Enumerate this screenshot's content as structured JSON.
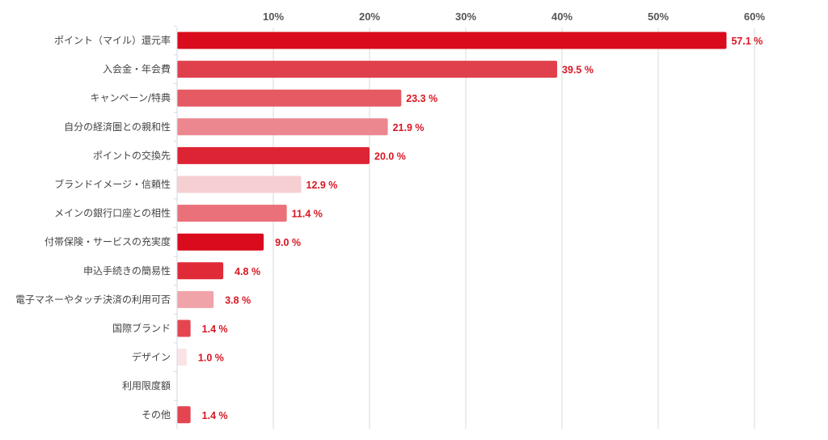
{
  "chart_data": {
    "type": "bar",
    "orientation": "horizontal",
    "title": "",
    "xlabel": "",
    "ylabel": "",
    "xlim": [
      0,
      60
    ],
    "x_ticks": [
      "10%",
      "20%",
      "30%",
      "40%",
      "50%",
      "60%"
    ],
    "x_tick_values": [
      10,
      20,
      30,
      40,
      50,
      60
    ],
    "grid": true,
    "legend": "none",
    "categories": [
      "ポイント（マイル）還元率",
      "入会金・年会費",
      "キャンペーン/特典",
      "自分の経済圏との親和性",
      "ポイントの交換先",
      "ブランドイメージ・信頼性",
      "メインの銀行口座との相性",
      "付帯保険・サービスの充実度",
      "申込手続きの簡易性",
      "電子マネーやタッチ決済の利用可否",
      "国際ブランド",
      "デザイン",
      "利用限度額",
      "その他"
    ],
    "values": [
      57.1,
      39.5,
      23.3,
      21.9,
      20.0,
      12.9,
      11.4,
      9.0,
      4.8,
      3.8,
      1.4,
      1.0,
      0,
      1.4
    ],
    "value_labels": [
      "57.1 %",
      "39.5 %",
      "23.3 %",
      "21.9 %",
      "20.0 %",
      "12.9 %",
      "11.4 %",
      "9.0 %",
      "4.8 %",
      "3.8 %",
      "1.4 %",
      "1.0 %",
      "",
      "1.4 %"
    ],
    "bar_colors": [
      "#d90b1c",
      "#e0404c",
      "#e55a63",
      "#ec8790",
      "#dd2434",
      "#f6cfd2",
      "#ea7179",
      "#d90b1c",
      "#e02a38",
      "#f0a4aa",
      "#e44551",
      "#fbe3e5",
      "#ffffff",
      "#e44551"
    ],
    "label_color": "#d81622"
  }
}
